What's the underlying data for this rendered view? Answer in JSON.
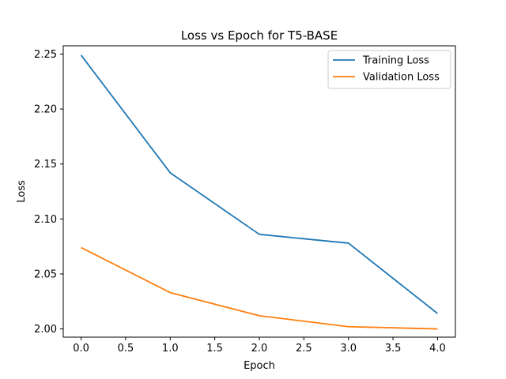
{
  "chart_data": {
    "type": "line",
    "title": "Loss vs Epoch for T5-BASE",
    "xlabel": "Epoch",
    "ylabel": "Loss",
    "xlim": [
      -0.2,
      4.2
    ],
    "ylim": [
      1.9925,
      2.2575
    ],
    "xticks": [
      0.0,
      0.5,
      1.0,
      1.5,
      2.0,
      2.5,
      3.0,
      3.5,
      4.0
    ],
    "xtick_labels": [
      "0.0",
      "0.5",
      "1.0",
      "1.5",
      "2.0",
      "2.5",
      "3.0",
      "3.5",
      "4.0"
    ],
    "yticks": [
      2.0,
      2.05,
      2.1,
      2.15,
      2.2,
      2.25
    ],
    "ytick_labels": [
      "2.00",
      "2.05",
      "2.10",
      "2.15",
      "2.20",
      "2.25"
    ],
    "grid": false,
    "legend_position": "top-right",
    "x": [
      0,
      1,
      2,
      3,
      4
    ],
    "series": [
      {
        "name": "Training Loss",
        "color": "#1f77b4",
        "values": [
          2.249,
          2.142,
          2.086,
          2.078,
          2.014
        ]
      },
      {
        "name": "Validation Loss",
        "color": "#ff7f0e",
        "values": [
          2.074,
          2.033,
          2.012,
          2.002,
          2.0
        ]
      }
    ]
  }
}
